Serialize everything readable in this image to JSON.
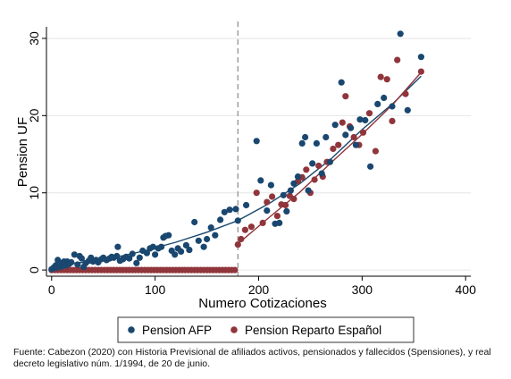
{
  "chart_data": {
    "type": "scatter",
    "xlabel": "Numero Cotizaciones",
    "ylabel": "Pension UF",
    "xlim": [
      -5,
      405
    ],
    "ylim": [
      -0.8,
      31.5
    ],
    "xticks": [
      0,
      100,
      200,
      300,
      400
    ],
    "yticks": [
      0,
      10,
      20,
      30
    ],
    "grid": "horizontal",
    "vline_x": 180,
    "legend_position": "bottom",
    "series": [
      {
        "name": "Pension AFP",
        "color": "#1a476f",
        "points": [
          [
            0,
            0.1
          ],
          [
            2,
            0.3
          ],
          [
            4,
            0.6
          ],
          [
            5,
            0.3
          ],
          [
            6,
            1.3
          ],
          [
            7,
            0.5
          ],
          [
            9,
            0.4
          ],
          [
            10,
            0.9
          ],
          [
            12,
            1.1
          ],
          [
            14,
            0.6
          ],
          [
            15,
            1.1
          ],
          [
            17,
            0.8
          ],
          [
            19,
            1.0
          ],
          [
            22,
            2.0
          ],
          [
            25,
            0.7
          ],
          [
            27,
            1.8
          ],
          [
            29,
            1.5
          ],
          [
            31,
            0.4
          ],
          [
            33,
            0.9
          ],
          [
            36,
            1.2
          ],
          [
            38,
            1.6
          ],
          [
            40,
            1.1
          ],
          [
            43,
            1.3
          ],
          [
            45,
            1.0
          ],
          [
            48,
            1.4
          ],
          [
            50,
            1.6
          ],
          [
            53,
            1.3
          ],
          [
            56,
            1.5
          ],
          [
            58,
            1.7
          ],
          [
            60,
            1.6
          ],
          [
            63,
            1.8
          ],
          [
            64,
            3.0
          ],
          [
            66,
            1.2
          ],
          [
            69,
            1.4
          ],
          [
            72,
            1.7
          ],
          [
            75,
            1.5
          ],
          [
            78,
            2.1
          ],
          [
            82,
            0.9
          ],
          [
            85,
            1.6
          ],
          [
            88,
            2.5
          ],
          [
            92,
            2.2
          ],
          [
            95,
            2.8
          ],
          [
            98,
            3.0
          ],
          [
            100,
            2.0
          ],
          [
            103,
            2.8
          ],
          [
            106,
            3.0
          ],
          [
            108,
            4.2
          ],
          [
            110,
            4.4
          ],
          [
            113,
            4.5
          ],
          [
            116,
            2.5
          ],
          [
            119,
            2.0
          ],
          [
            122,
            2.8
          ],
          [
            125,
            2.4
          ],
          [
            130,
            3.2
          ],
          [
            133,
            2.6
          ],
          [
            138,
            6.2
          ],
          [
            142,
            3.8
          ],
          [
            147,
            3.0
          ],
          [
            150,
            4.0
          ],
          [
            154,
            5.5
          ],
          [
            158,
            4.5
          ],
          [
            163,
            6.5
          ],
          [
            167,
            7.5
          ],
          [
            172,
            7.8
          ],
          [
            178,
            7.9
          ],
          [
            180,
            6.4
          ],
          [
            188,
            8.4
          ],
          [
            198,
            16.7
          ],
          [
            202,
            11.6
          ],
          [
            208,
            7.7
          ],
          [
            212,
            11.0
          ],
          [
            216,
            6.0
          ],
          [
            220,
            6.1
          ],
          [
            224,
            9.7
          ],
          [
            227,
            7.6
          ],
          [
            231,
            10.3
          ],
          [
            234,
            11.2
          ],
          [
            238,
            12.1
          ],
          [
            242,
            16.4
          ],
          [
            245,
            17.2
          ],
          [
            248,
            10.3
          ],
          [
            252,
            13.8
          ],
          [
            256,
            16.4
          ],
          [
            261,
            12.5
          ],
          [
            265,
            17.2
          ],
          [
            269,
            14.0
          ],
          [
            274,
            18.8
          ],
          [
            280,
            24.3
          ],
          [
            284,
            17.5
          ],
          [
            289,
            18.4
          ],
          [
            294,
            16.2
          ],
          [
            298,
            19.5
          ],
          [
            303,
            19.4
          ],
          [
            308,
            13.4
          ],
          [
            315,
            21.5
          ],
          [
            321,
            22.3
          ],
          [
            329,
            21.2
          ],
          [
            337,
            30.6
          ],
          [
            344,
            20.7
          ],
          [
            357,
            27.6
          ]
        ],
        "fit_segments": [
          [
            [
              0,
              0.6
            ],
            [
              30,
              1.0
            ],
            [
              60,
              1.6
            ],
            [
              90,
              2.5
            ],
            [
              120,
              3.6
            ],
            [
              150,
              4.9
            ],
            [
              180,
              6.4
            ]
          ],
          [
            [
              180,
              6.4
            ],
            [
              210,
              8.6
            ],
            [
              240,
              11.2
            ],
            [
              270,
              14.4
            ],
            [
              300,
              18.2
            ],
            [
              330,
              21.6
            ],
            [
              357,
              25.1
            ]
          ]
        ]
      },
      {
        "name": "Pension Reparto Español",
        "color": "#90353b",
        "points": [
          [
            0,
            0
          ],
          [
            3,
            0
          ],
          [
            6,
            0
          ],
          [
            9,
            0
          ],
          [
            12,
            0
          ],
          [
            15,
            0
          ],
          [
            18,
            0
          ],
          [
            21,
            0
          ],
          [
            24,
            0
          ],
          [
            27,
            0
          ],
          [
            30,
            0
          ],
          [
            33,
            0
          ],
          [
            36,
            0
          ],
          [
            39,
            0
          ],
          [
            42,
            0
          ],
          [
            45,
            0
          ],
          [
            48,
            0
          ],
          [
            51,
            0
          ],
          [
            54,
            0
          ],
          [
            57,
            0
          ],
          [
            60,
            0
          ],
          [
            63,
            0
          ],
          [
            66,
            0
          ],
          [
            69,
            0
          ],
          [
            72,
            0
          ],
          [
            75,
            0
          ],
          [
            78,
            0
          ],
          [
            81,
            0
          ],
          [
            84,
            0
          ],
          [
            87,
            0
          ],
          [
            90,
            0
          ],
          [
            93,
            0
          ],
          [
            96,
            0
          ],
          [
            99,
            0
          ],
          [
            102,
            0
          ],
          [
            105,
            0
          ],
          [
            108,
            0
          ],
          [
            111,
            0
          ],
          [
            114,
            0
          ],
          [
            117,
            0
          ],
          [
            120,
            0
          ],
          [
            123,
            0
          ],
          [
            126,
            0
          ],
          [
            129,
            0
          ],
          [
            132,
            0
          ],
          [
            135,
            0
          ],
          [
            138,
            0
          ],
          [
            141,
            0
          ],
          [
            144,
            0
          ],
          [
            147,
            0
          ],
          [
            150,
            0
          ],
          [
            153,
            0
          ],
          [
            156,
            0
          ],
          [
            159,
            0
          ],
          [
            162,
            0
          ],
          [
            165,
            0
          ],
          [
            168,
            0
          ],
          [
            171,
            0
          ],
          [
            174,
            0
          ],
          [
            177,
            0
          ],
          [
            180,
            3.3
          ],
          [
            183,
            4.0
          ],
          [
            187,
            5.2
          ],
          [
            193,
            5.6
          ],
          [
            198,
            10.0
          ],
          [
            204,
            6.1
          ],
          [
            208,
            8.8
          ],
          [
            213,
            9.5
          ],
          [
            218,
            7.0
          ],
          [
            222,
            8.5
          ],
          [
            226,
            8.4
          ],
          [
            230,
            9.6
          ],
          [
            234,
            9.2
          ],
          [
            238,
            11.5
          ],
          [
            242,
            12.0
          ],
          [
            246,
            13.0
          ],
          [
            250,
            10.0
          ],
          [
            254,
            11.7
          ],
          [
            258,
            13.5
          ],
          [
            262,
            12.1
          ],
          [
            266,
            14.0
          ],
          [
            272,
            15.7
          ],
          [
            277,
            16.2
          ],
          [
            281,
            19.1
          ],
          [
            284,
            22.5
          ],
          [
            288,
            18.6
          ],
          [
            292,
            17.2
          ],
          [
            297,
            16.2
          ],
          [
            301,
            17.8
          ],
          [
            307,
            20.3
          ],
          [
            313,
            15.4
          ],
          [
            318,
            25.0
          ],
          [
            324,
            24.7
          ],
          [
            329,
            19.3
          ],
          [
            334,
            27.2
          ],
          [
            342,
            22.8
          ],
          [
            357,
            25.7
          ]
        ],
        "fit_segments": [
          [
            [
              0,
              0
            ],
            [
              180,
              0
            ]
          ],
          [
            [
              180,
              3.4
            ],
            [
              210,
              6.8
            ],
            [
              240,
              10.1
            ],
            [
              270,
              13.9
            ],
            [
              300,
              17.6
            ],
            [
              330,
              21.5
            ],
            [
              357,
              25.6
            ]
          ]
        ]
      }
    ]
  },
  "legend": {
    "items": [
      {
        "label": "Pension AFP",
        "color": "#1a476f"
      },
      {
        "label": "Pension Reparto Español",
        "color": "#90353b"
      }
    ]
  },
  "note": {
    "line1": "Fuente: Cabezon (2020) con Historia Previsional de afiliados activos, pensionados y fallecidos (Spensiones), y real",
    "line2": "decreto legislativo núm. 1/1994, de 20 de junio."
  }
}
